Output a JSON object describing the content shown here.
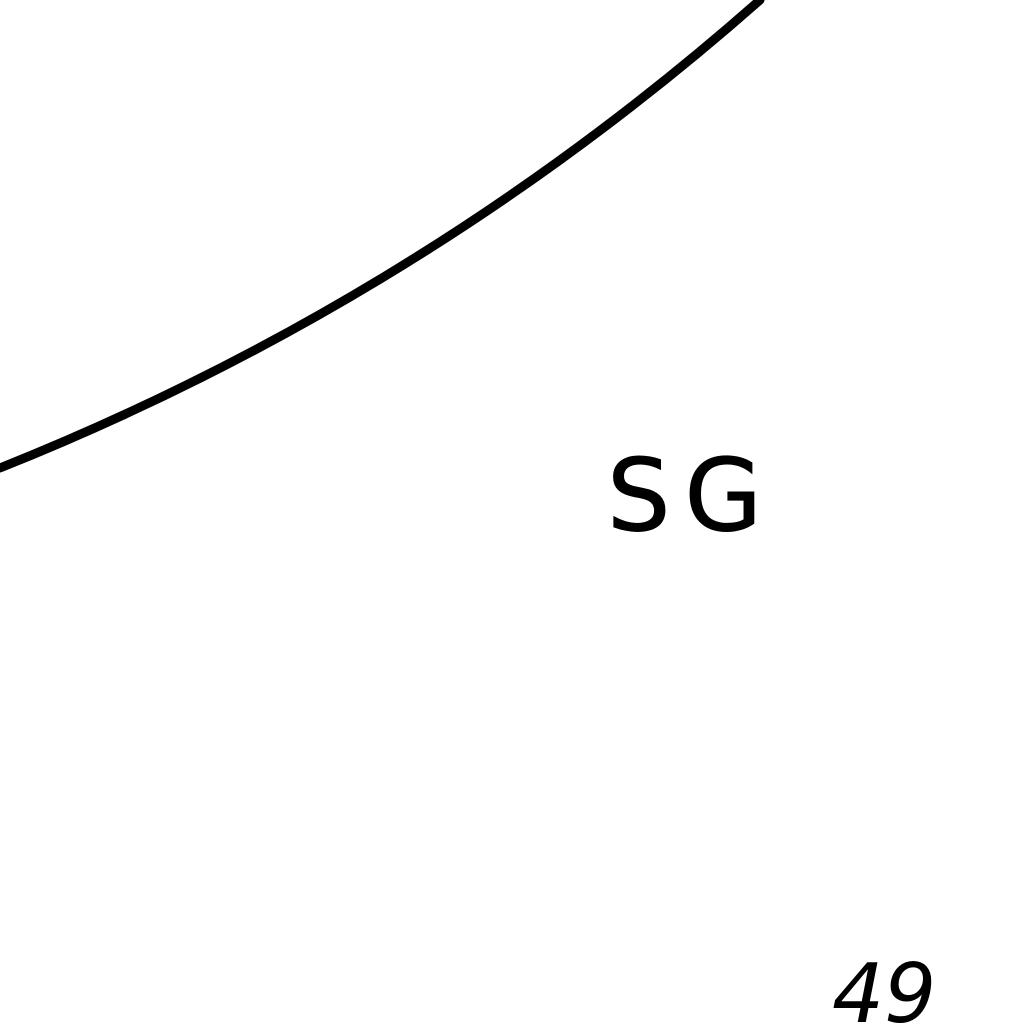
{
  "map": {
    "line_color": "#000000",
    "background_color": "#ffffff",
    "area_label": "SG",
    "number_label": "49"
  }
}
